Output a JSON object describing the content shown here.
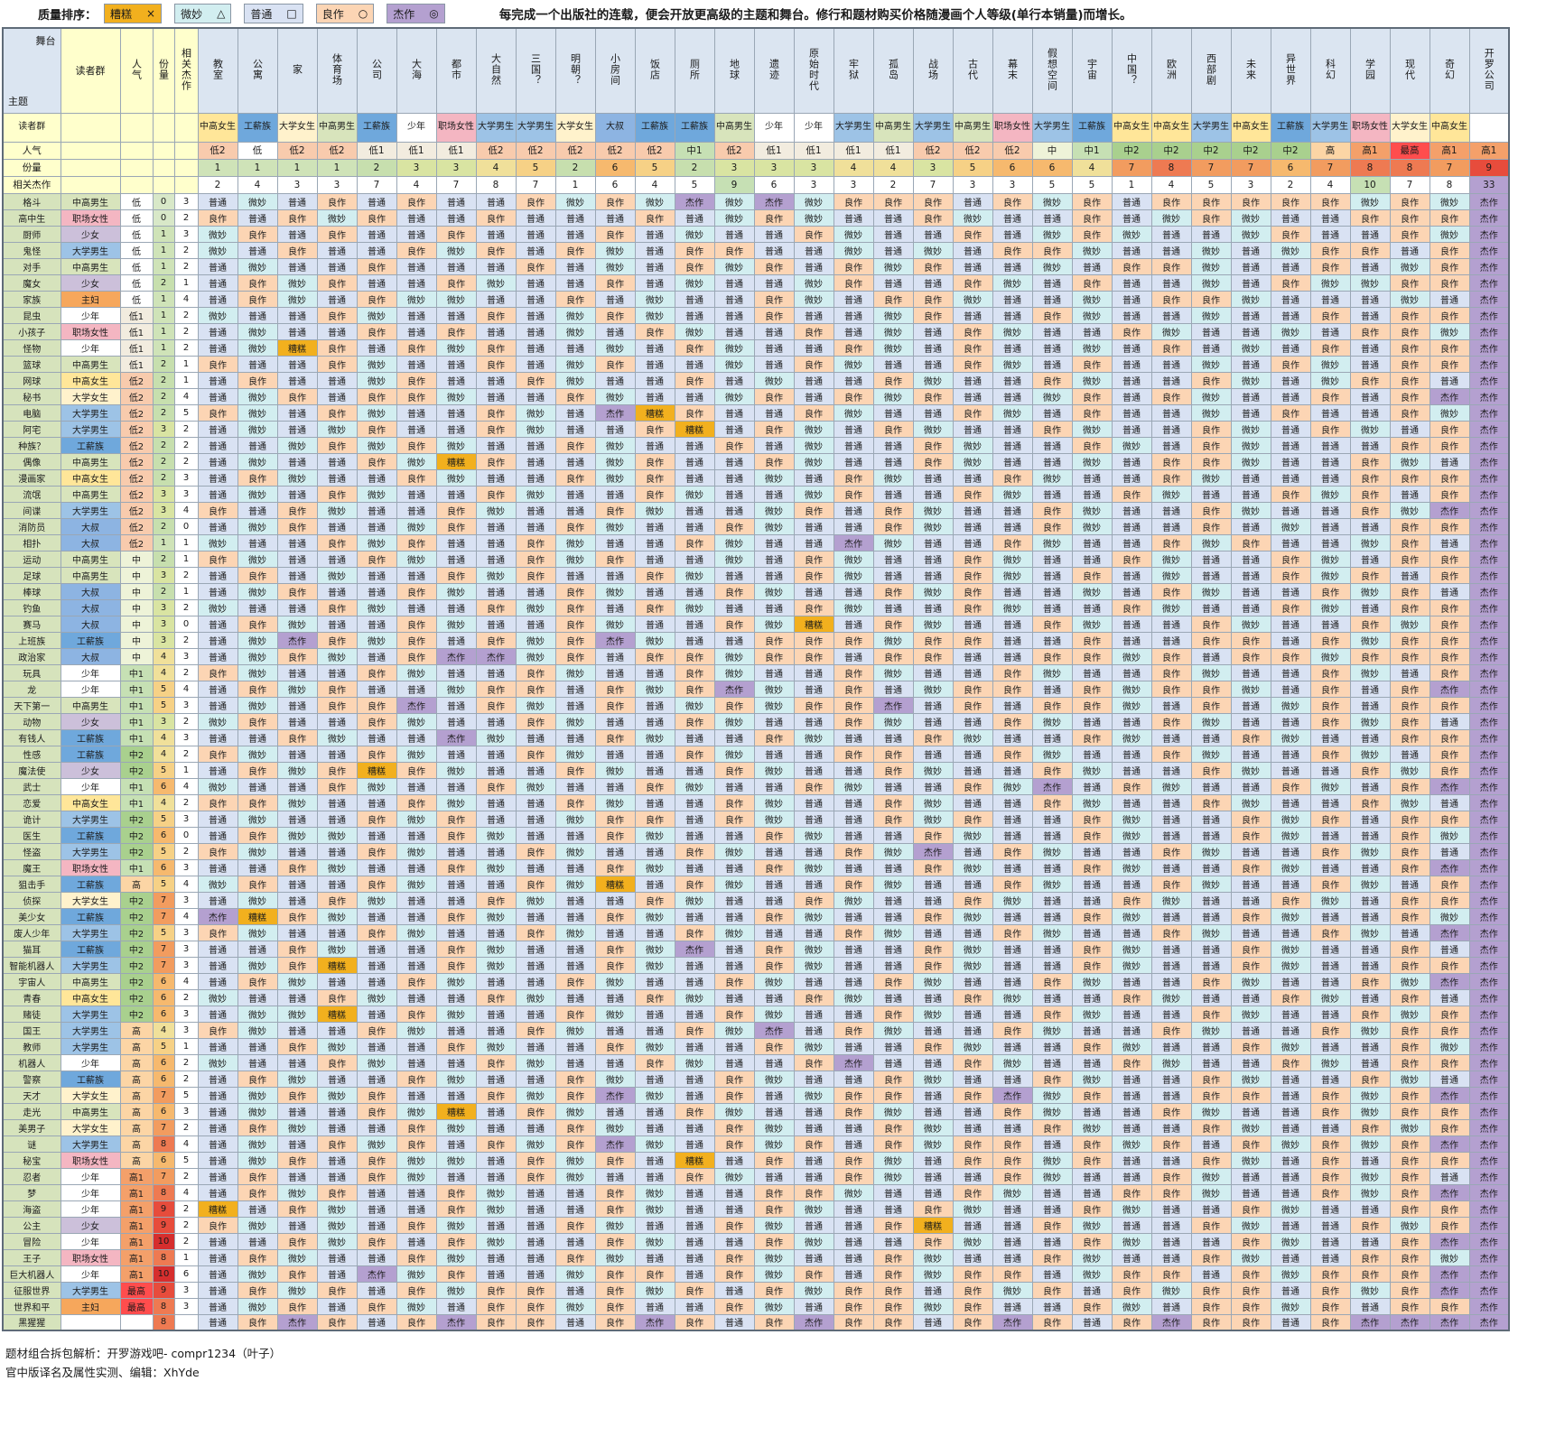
{
  "legend": {
    "title": "质量排序：",
    "items": [
      {
        "label": "糟糕",
        "symbol": "×",
        "color": "#f2b01e"
      },
      {
        "label": "微妙",
        "symbol": "△",
        "color": "#d2eef0"
      },
      {
        "label": "普通",
        "symbol": "□",
        "color": "#d9e2f3"
      },
      {
        "label": "良作",
        "symbol": "○",
        "color": "#fcd5b4"
      },
      {
        "label": "杰作",
        "symbol": "◎",
        "color": "#b4a0d0"
      }
    ]
  },
  "note": "每完成一个出版社的连载，便会开放更高级的主题和舞台。修行和题材购买价格随漫画个人等级(单行本销量)而增长。",
  "corner": {
    "top": "舞台",
    "bottom": "主题"
  },
  "left_headers": {
    "reader": "读者群",
    "popularity": "人气",
    "weight": "份量",
    "masterpieces": "相关杰作"
  },
  "rating_labels": {
    "0": "糟糕",
    "1": "微妙",
    "2": "普通",
    "3": "良作",
    "4": "杰作"
  },
  "rating_colors": {
    "糟糕": "#f2b01e",
    "微妙": "#d2eef0",
    "普通": "#d9e2f3",
    "良作": "#fcd5b4",
    "杰作": "#b4a0d0"
  },
  "reader_colors": {
    "中高男生": "#d8e4bc",
    "中高女生": "#ffe699",
    "大学男生": "#9dc3e6",
    "大学女生": "#fff2cc",
    "工薪族": "#6fa8dc",
    "职场女性": "#f4b6c2",
    "少年": "#ffffff",
    "少女": "#ccc0da",
    "大叔": "#8db4e2",
    "主妇": "#f6a75c",
    "": "#ffffff"
  },
  "popularity_colors": {
    "低": "#ffffff",
    "低1": "#f2ecdf",
    "低2": "#f8cbad",
    "中": "#eef3d8",
    "中1": "#c6e0b4",
    "中2": "#a9d08e",
    "高": "#fcd5a5",
    "高1": "#f4a06a",
    "最高": "#ff4d4d",
    "": "#ffffff"
  },
  "weight_colors": {
    "0": "#d8e8c8",
    "1": "#cfe3b8",
    "2": "#c7dfae",
    "3": "#d9e4a2",
    "4": "#f0e09a",
    "5": "#f6d186",
    "6": "#f6b96e",
    "7": "#f29c5f",
    "8": "#ee7a52",
    "9": "#e74c3c",
    "10": "#d62e2e"
  },
  "master_colors": {
    "high": "#c6e0b4",
    "total": "#b4a0d0",
    "normal": "#ffffff"
  },
  "stages": [
    {
      "name": "教室",
      "reader": "中高女生",
      "pop": "低2",
      "weight": "1",
      "master": "2"
    },
    {
      "name": "公寓",
      "reader": "工薪族",
      "pop": "低",
      "weight": "1",
      "master": "4"
    },
    {
      "name": "家",
      "reader": "大学女生",
      "pop": "低2",
      "weight": "1",
      "master": "3"
    },
    {
      "name": "体育场",
      "reader": "中高男生",
      "pop": "低2",
      "weight": "1",
      "master": "3"
    },
    {
      "name": "公司",
      "reader": "工薪族",
      "pop": "低1",
      "weight": "2",
      "master": "7"
    },
    {
      "name": "大海",
      "reader": "少年",
      "pop": "低1",
      "weight": "3",
      "master": "4"
    },
    {
      "name": "都市",
      "reader": "职场女性",
      "pop": "低1",
      "weight": "3",
      "master": "7"
    },
    {
      "name": "大自然",
      "reader": "大学男生",
      "pop": "低2",
      "weight": "4",
      "master": "8"
    },
    {
      "name": "三国？",
      "reader": "大学男生",
      "pop": "低2",
      "weight": "5",
      "master": "7"
    },
    {
      "name": "明朝？",
      "reader": "大学女生",
      "pop": "低2",
      "weight": "2",
      "master": "1"
    },
    {
      "name": "小房间",
      "reader": "大叔",
      "pop": "低2",
      "weight": "6",
      "master": "6"
    },
    {
      "name": "饭店",
      "reader": "工薪族",
      "pop": "低2",
      "weight": "5",
      "master": "4"
    },
    {
      "name": "厕所",
      "reader": "工薪族",
      "pop": "中1",
      "weight": "2",
      "master": "5"
    },
    {
      "name": "地球",
      "reader": "中高男生",
      "pop": "低2",
      "weight": "3",
      "master": "9"
    },
    {
      "name": "遗迹",
      "reader": "少年",
      "pop": "低1",
      "weight": "3",
      "master": "6"
    },
    {
      "name": "原始时代",
      "reader": "少年",
      "pop": "低1",
      "weight": "3",
      "master": "3"
    },
    {
      "name": "牢狱",
      "reader": "大学男生",
      "pop": "低1",
      "weight": "4",
      "master": "3"
    },
    {
      "name": "孤岛",
      "reader": "中高男生",
      "pop": "低1",
      "weight": "4",
      "master": "2"
    },
    {
      "name": "战场",
      "reader": "大学男生",
      "pop": "低2",
      "weight": "3",
      "master": "7"
    },
    {
      "name": "古代",
      "reader": "中高男生",
      "pop": "低2",
      "weight": "5",
      "master": "3"
    },
    {
      "name": "幕末",
      "reader": "职场女性",
      "pop": "低2",
      "weight": "6",
      "master": "3"
    },
    {
      "name": "假想空间",
      "reader": "大学男生",
      "pop": "中",
      "weight": "6",
      "master": "5"
    },
    {
      "name": "宇宙",
      "reader": "工薪族",
      "pop": "中1",
      "weight": "4",
      "master": "5"
    },
    {
      "name": "中国？",
      "reader": "中高女生",
      "pop": "中2",
      "weight": "7",
      "master": "1"
    },
    {
      "name": "欧洲",
      "reader": "中高女生",
      "pop": "中2",
      "weight": "8",
      "master": "4"
    },
    {
      "name": "西部剧",
      "reader": "大学男生",
      "pop": "中2",
      "weight": "7",
      "master": "5"
    },
    {
      "name": "未来",
      "reader": "中高女生",
      "pop": "中2",
      "weight": "7",
      "master": "3"
    },
    {
      "name": "异世界",
      "reader": "工薪族",
      "pop": "中2",
      "weight": "6",
      "master": "2"
    },
    {
      "name": "科幻",
      "reader": "大学男生",
      "pop": "高",
      "weight": "7",
      "master": "4"
    },
    {
      "name": "学园",
      "reader": "职场女性",
      "pop": "高1",
      "weight": "8",
      "master": "10"
    },
    {
      "name": "现代",
      "reader": "大学女生",
      "pop": "最高",
      "weight": "8",
      "master": "7"
    },
    {
      "name": "奇幻",
      "reader": "中高女生",
      "pop": "高1",
      "weight": "7",
      "master": "8"
    },
    {
      "name": "开罗公司",
      "reader": "",
      "pop": "高1",
      "weight": "9",
      "master": "33"
    }
  ],
  "themes": [
    {
      "name": "格斗",
      "reader": "中高男生",
      "pop": "低",
      "weight": "0",
      "master": "3",
      "ratings": "212323223131414133323132333331314"
    },
    {
      "name": "高中生",
      "reader": "职场女性",
      "pop": "低",
      "weight": "0",
      "master": "2",
      "ratings": "323132232223213122312232131223334"
    },
    {
      "name": "厨师",
      "reader": "少女",
      "pop": "低",
      "weight": "1",
      "master": "3",
      "ratings": "132322322232122312232131221322314"
    },
    {
      "name": "鬼怪",
      "reader": "大学男生",
      "pop": "低",
      "weight": "1",
      "master": "2",
      "ratings": "123223132312332212123312212133234"
    },
    {
      "name": "对手",
      "reader": "中高男生",
      "pop": "低",
      "weight": "1",
      "master": "2",
      "ratings": "212232223212313231322123312232134"
    },
    {
      "name": "魔女",
      "reader": "少女",
      "pop": "低",
      "weight": "2",
      "master": "1",
      "ratings": "231322312232122132231232212311334"
    },
    {
      "name": "家族",
      "reader": "主妇",
      "pop": "低",
      "weight": "1",
      "master": "4",
      "ratings": "231231122321223123312212331222124"
    },
    {
      "name": "昆虫",
      "reader": "少年",
      "pop": "低1",
      "weight": "1",
      "master": "2",
      "ratings": "122312232131223221322312212232334"
    },
    {
      "name": "小孩子",
      "reader": "职场女性",
      "pop": "低1",
      "weight": "1",
      "master": "2",
      "ratings": "212232322123122321231223122123314"
    },
    {
      "name": "怪物",
      "reader": "少年",
      "pop": "低1",
      "weight": "1",
      "master": "2",
      "ratings": "210323132212312231232212321232334"
    },
    {
      "name": "篮球",
      "reader": "中高男生",
      "pop": "低1",
      "weight": "2",
      "master": "1",
      "ratings": "322312232132212312231232212312334"
    },
    {
      "name": "网球",
      "reader": "中高女生",
      "pop": "低2",
      "weight": "2",
      "master": "1",
      "ratings": "232213223122321223122312231213324"
    },
    {
      "name": "秘书",
      "reader": "大学女生",
      "pop": "低2",
      "weight": "2",
      "master": "4",
      "ratings": "213233122312213231322132312232344"
    },
    {
      "name": "电脑",
      "reader": "大学男生",
      "pop": "低2",
      "weight": "2",
      "master": "5",
      "ratings": "312312231240322312231232212322314"
    },
    {
      "name": "阿宅",
      "reader": "大学男生",
      "pop": "低2",
      "weight": "3",
      "master": "2",
      "ratings": "212132231223023123122312231231234"
    },
    {
      "name": "种族？",
      "reader": "工薪族",
      "pop": "低2",
      "weight": "2",
      "master": "2",
      "ratings": "221313122312232122312231231222334"
    },
    {
      "name": "偶像",
      "reader": "中高男生",
      "pop": "低2",
      "weight": "2",
      "master": "2",
      "ratings": "212231032213223122312212331223124"
    },
    {
      "name": "漫画家",
      "reader": "中高女生",
      "pop": "低2",
      "weight": "2",
      "master": "3",
      "ratings": "231223122313221231223122312223334"
    },
    {
      "name": "流氓",
      "reader": "中高男生",
      "pop": "低2",
      "weight": "3",
      "master": "3",
      "ratings": "212312231223122132231223122313234"
    },
    {
      "name": "间谍",
      "reader": "大学男生",
      "pop": "低2",
      "weight": "3",
      "master": "4",
      "ratings": "323122312231221323122312231223144"
    },
    {
      "name": "消防员",
      "reader": "大叔",
      "pop": "低2",
      "weight": "2",
      "master": "0",
      "ratings": "213221322312231223122312232122334"
    },
    {
      "name": "相扑",
      "reader": "大叔",
      "pop": "低2",
      "weight": "1",
      "master": "1",
      "ratings": "122313223122312241223122313221324"
    },
    {
      "name": "运动",
      "reader": "中高男生",
      "pop": "中",
      "weight": "2",
      "master": "1",
      "ratings": "312231223132212312231223122312334"
    },
    {
      "name": "足球",
      "reader": "中高男生",
      "pop": "中",
      "weight": "3",
      "master": "2",
      "ratings": "232122313223122312231232122313234"
    },
    {
      "name": "棒球",
      "reader": "大叔",
      "pop": "中",
      "weight": "2",
      "master": "1",
      "ratings": "213223122312231223132212312231324"
    },
    {
      "name": "钓鱼",
      "reader": "大叔",
      "pop": "中",
      "weight": "3",
      "master": "2",
      "ratings": "122312231323122312231223122312334"
    },
    {
      "name": "赛马",
      "reader": "大叔",
      "pop": "中",
      "weight": "3",
      "master": "0",
      "ratings": "231223122312231023122312231223134"
    },
    {
      "name": "上班族",
      "reader": "工薪族",
      "pop": "中",
      "weight": "3",
      "master": "2",
      "ratings": "214313231341223331332232233231334"
    },
    {
      "name": "政治家",
      "reader": "大叔",
      "pop": "中",
      "weight": "4",
      "master": "3",
      "ratings": "213123441323313323322331323313334"
    },
    {
      "name": "玩具",
      "reader": "少年",
      "pop": "中1",
      "weight": "4",
      "master": "2",
      "ratings": "312231223122312231223122312231234"
    },
    {
      "name": "龙",
      "reader": "少年",
      "pop": "中1",
      "weight": "5",
      "master": "4",
      "ratings": "231322133231341232133231331232344"
    },
    {
      "name": "天下第一",
      "reader": "中高男生",
      "pop": "中1",
      "weight": "5",
      "master": "3",
      "ratings": "212334231232131334232331232132334"
    },
    {
      "name": "动物",
      "reader": "少女",
      "pop": "中1",
      "weight": "3",
      "master": "2",
      "ratings": "132231223122312231223122312231324"
    },
    {
      "name": "有钱人",
      "reader": "工薪族",
      "pop": "中1",
      "weight": "4",
      "master": "3",
      "ratings": "223122412231223122312231223122334"
    },
    {
      "name": "性感",
      "reader": "工薪族",
      "pop": "中2",
      "weight": "4",
      "master": "2",
      "ratings": "312231223122312233223122312231234"
    },
    {
      "name": "魔法使",
      "reader": "少女",
      "pop": "中2",
      "weight": "5",
      "master": "1",
      "ratings": "231303122312231223122312231223134"
    },
    {
      "name": "武士",
      "reader": "少年",
      "pop": "中1",
      "weight": "6",
      "master": "4",
      "ratings": "122312231223122312231423122312344"
    },
    {
      "name": "恋爱",
      "reader": "中高女生",
      "pop": "中1",
      "weight": "4",
      "master": "2",
      "ratings": "331223122312231223122312231223124"
    },
    {
      "name": "诡计",
      "reader": "大学男生",
      "pop": "中2",
      "weight": "5",
      "master": "3",
      "ratings": "212231322133231223132231223132334"
    },
    {
      "name": "医生",
      "reader": "工薪族",
      "pop": "中2",
      "weight": "6",
      "master": "0",
      "ratings": "231122312231223122312231223122314"
    },
    {
      "name": "怪盗",
      "reader": "大学男生",
      "pop": "中2",
      "weight": "5",
      "master": "2",
      "ratings": "312231223122312231423122312231324"
    },
    {
      "name": "魔王",
      "reader": "职场女性",
      "pop": "中1",
      "weight": "6",
      "master": "3",
      "ratings": "223122312231223122312231223122344"
    },
    {
      "name": "狙击手",
      "reader": "工薪族",
      "pop": "高",
      "weight": "5",
      "master": "4",
      "ratings": "132231223102312231223122312231234"
    },
    {
      "name": "侦探",
      "reader": "大学女生",
      "pop": "中2",
      "weight": "7",
      "master": "3",
      "ratings": "212312231223122312231223122312334"
    },
    {
      "name": "美少女",
      "reader": "工薪族",
      "pop": "中2",
      "weight": "7",
      "master": "4",
      "ratings": "403122312231223122312231223122314"
    },
    {
      "name": "废人少年",
      "reader": "大学男生",
      "pop": "中2",
      "weight": "5",
      "master": "3",
      "ratings": "312231223122312231223122312231244"
    },
    {
      "name": "猫耳",
      "reader": "工薪族",
      "pop": "中2",
      "weight": "7",
      "master": "3",
      "ratings": "223122312231423122312231223122324"
    },
    {
      "name": "智能机器人",
      "reader": "大学男生",
      "pop": "中2",
      "weight": "7",
      "master": "3",
      "ratings": "213022312231223122312231223122334"
    },
    {
      "name": "宇宙人",
      "reader": "中高男生",
      "pop": "中2",
      "weight": "6",
      "master": "4",
      "ratings": "231223122312231223122312231223144"
    },
    {
      "name": "青春",
      "reader": "中高女生",
      "pop": "中2",
      "weight": "6",
      "master": "2",
      "ratings": "122312231223122312231223122312324"
    },
    {
      "name": "赌徒",
      "reader": "大学男生",
      "pop": "中2",
      "weight": "6",
      "master": "3",
      "ratings": "211023122312231223122312231223134"
    },
    {
      "name": "国王",
      "reader": "大学男生",
      "pop": "高",
      "weight": "4",
      "master": "3",
      "ratings": "312231223122314231223122312231334"
    },
    {
      "name": "教师",
      "reader": "大学男生",
      "pop": "高",
      "weight": "5",
      "master": "1",
      "ratings": "223122312231223122312231223122314"
    },
    {
      "name": "机器人",
      "reader": "少年",
      "pop": "高",
      "weight": "6",
      "master": "2",
      "ratings": "122312231223122342231223122312334"
    },
    {
      "name": "警察",
      "reader": "工薪族",
      "pop": "高",
      "weight": "6",
      "master": "2",
      "ratings": "231223122312231223122312231223124"
    },
    {
      "name": "天才",
      "reader": "大学女生",
      "pop": "高",
      "weight": "7",
      "master": "5",
      "ratings": "213132231341232133234132233231344"
    },
    {
      "name": "走光",
      "reader": "中高男生",
      "pop": "高",
      "weight": "6",
      "master": "3",
      "ratings": "212231023122312231223122312231334"
    },
    {
      "name": "美男子",
      "reader": "大学女生",
      "pop": "高",
      "weight": "7",
      "master": "2",
      "ratings": "231223122312231223122312231223134"
    },
    {
      "name": "谜",
      "reader": "大学男生",
      "pop": "高",
      "weight": "8",
      "master": "4",
      "ratings": "212313231341231323133231323131344"
    },
    {
      "name": "秘宝",
      "reader": "职场女性",
      "pop": "高",
      "weight": "6",
      "master": "5",
      "ratings": "213231123132023231233132231232334"
    },
    {
      "name": "忍者",
      "reader": "少年",
      "pop": "高1",
      "weight": "7",
      "master": "2",
      "ratings": "232231223122312231223122312231324"
    },
    {
      "name": "梦",
      "reader": "少年",
      "pop": "高1",
      "weight": "8",
      "master": "4",
      "ratings": "231322312231223312231223312231344"
    },
    {
      "name": "海盗",
      "reader": "少年",
      "pop": "高1",
      "weight": "9",
      "master": "2",
      "ratings": "023122312231223122312231223122334"
    },
    {
      "name": "公主",
      "reader": "少女",
      "pop": "高1",
      "weight": "9",
      "master": "2",
      "ratings": "312123122312231223022312231223134"
    },
    {
      "name": "冒险",
      "reader": "少年",
      "pop": "高1",
      "weight": "10",
      "master": "2",
      "ratings": "223132312231223122312231223122344"
    },
    {
      "name": "王子",
      "reader": "职场女性",
      "pop": "高1",
      "weight": "8",
      "master": "1",
      "ratings": "231223122312231223122312231223314"
    },
    {
      "name": "巨大机器人",
      "reader": "少年",
      "pop": "高1",
      "weight": "10",
      "master": "6",
      "ratings": "213241322133231323133213323133344"
    },
    {
      "name": "征服世界",
      "reader": "大学男生",
      "pop": "最高",
      "weight": "9",
      "master": "3",
      "ratings": "231323133231323133231323133231344"
    },
    {
      "name": "世界和平",
      "reader": "主妇",
      "pop": "最高",
      "weight": "8",
      "master": "3",
      "ratings": "213231233132231233132231233132334"
    },
    {
      "name": "黑猩猩",
      "reader": "",
      "pop": "",
      "weight": "8",
      "master": "",
      "ratings": "234323433234323433234323433234444"
    }
  ],
  "footer": [
    "题材组合拆包解析：开罗游戏吧- compr1234（叶子）",
    "官中版译名及属性实测、编辑：XhYde"
  ]
}
